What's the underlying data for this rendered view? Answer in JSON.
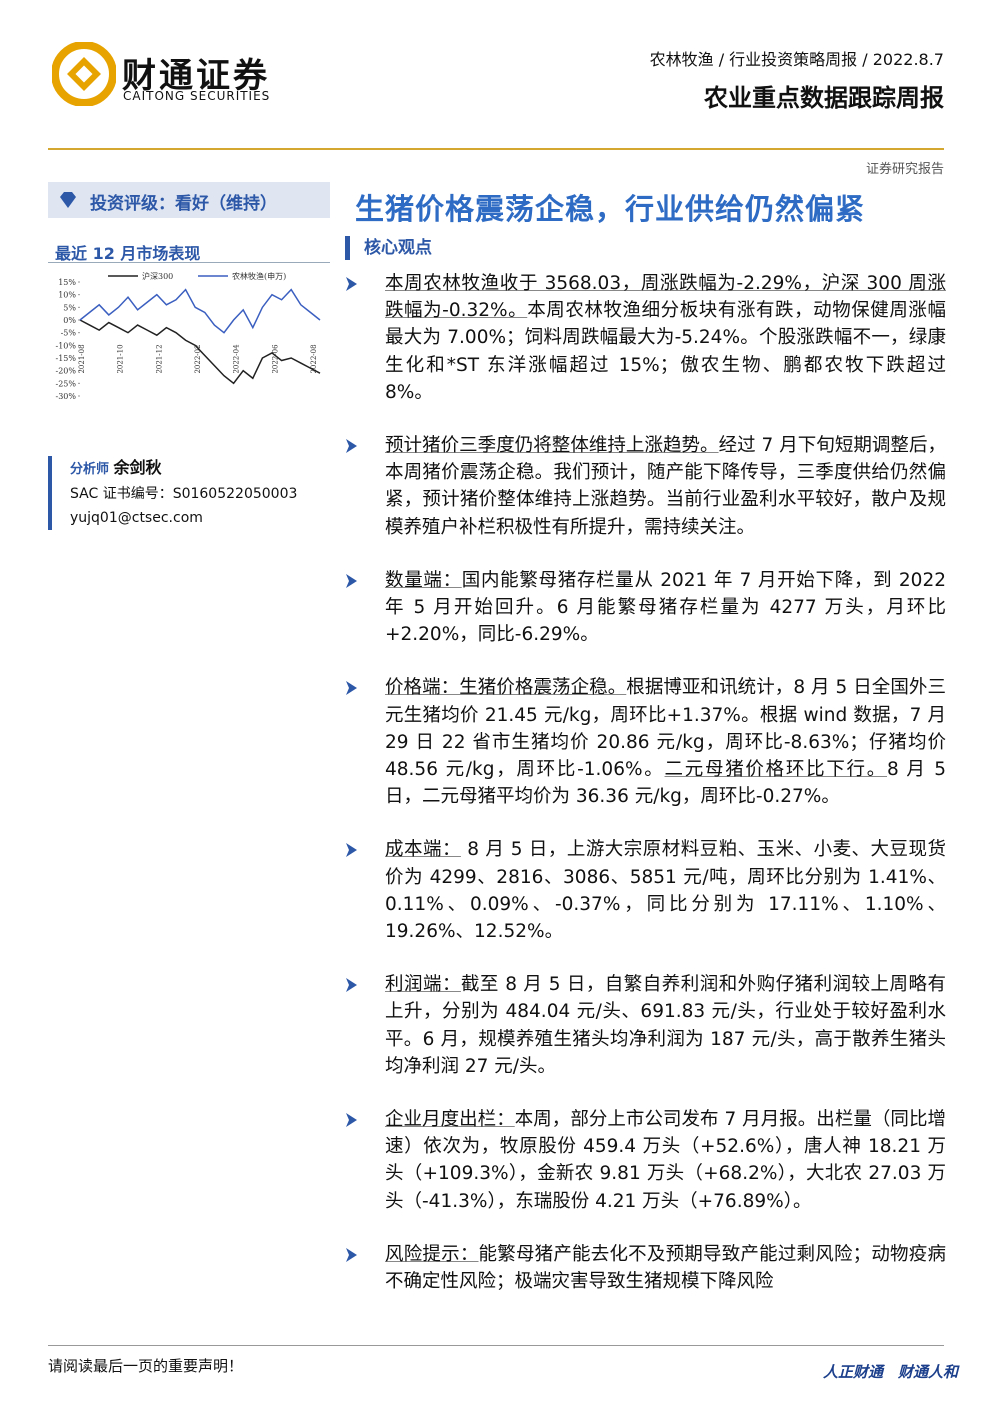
{
  "header": {
    "brand_cn": "财通证券",
    "brand_en": "CAITONG SECURITIES",
    "breadcrumb": "农林牧渔 / 行业投资策略周报 / 2022.8.7",
    "report_name": "农业重点数据跟踪周报",
    "report_type": "证券研究报告"
  },
  "rating": "投资评级：看好（维持）",
  "title": "生猪价格震荡企稳，行业供给仍然偏紧",
  "market_chart": {
    "type": "line",
    "title": "最近 12 月市场表现",
    "series": [
      {
        "name": "沪深300",
        "color": "#222222",
        "values": [
          0,
          -2,
          -4,
          -1,
          -3,
          -5,
          -2,
          -4,
          -6,
          -3,
          -5,
          -8,
          -10,
          -14,
          -18,
          -22,
          -25,
          -20,
          -23,
          -15,
          -13,
          -16,
          -15,
          -17,
          -19,
          -21
        ]
      },
      {
        "name": "农林牧渔(申万)",
        "color": "#3b5fc0",
        "values": [
          0,
          3,
          6,
          2,
          5,
          9,
          4,
          7,
          10,
          6,
          8,
          12,
          5,
          3,
          -2,
          -5,
          0,
          4,
          -3,
          5,
          10,
          8,
          12,
          6,
          3,
          0
        ]
      }
    ],
    "xtick_labels": [
      "2021-08",
      "2021-10",
      "2021-12",
      "2022-02",
      "2022-04",
      "2022-06",
      "2022-08"
    ],
    "ylim": [
      -30,
      15
    ],
    "yticks": [
      {
        "value": 15,
        "label": "15%"
      },
      {
        "value": 10,
        "label": "10%"
      },
      {
        "value": 5,
        "label": "5%"
      },
      {
        "value": 0,
        "label": "0%"
      },
      {
        "value": -5,
        "label": "-5%"
      },
      {
        "value": -10,
        "label": "-10%"
      },
      {
        "value": -15,
        "label": "-15%"
      },
      {
        "value": -20,
        "label": "-20%"
      },
      {
        "value": -25,
        "label": "-25%"
      },
      {
        "value": -30,
        "label": "-30%"
      }
    ]
  },
  "analyst": {
    "label": "分析师",
    "name": "余剑秋",
    "sac": "SAC 证书编号：S0160522050003",
    "email": "yujq01@ctsec.com"
  },
  "core_heading": "核心观点",
  "bullets": [
    {
      "runs": [
        {
          "text": "本周农林牧渔收于 3568.03，周涨跌幅为-2.29%，沪深 300 周涨跌幅为-0.32%。",
          "em": true
        },
        {
          "text": "本周农林牧渔细分板块有涨有跌，动物保健周涨幅最大为 7.00%；饲料周跌幅最大为-5.24%。个股涨跌幅不一，绿康生化和*ST 东洋涨幅超过 15%；傲农生物、鹏都农牧下跌超过 8%。",
          "em": false
        }
      ]
    },
    {
      "runs": [
        {
          "text": "预计猪价三季度仍将整体维持上涨趋势。",
          "em": true
        },
        {
          "text": "经过 7 月下旬短期调整后，本周猪价震荡企稳。我们预计，随产能下降传导，三季度供给仍然偏紧，预计猪价整体维持上涨趋势。当前行业盈利水平较好，散户及规模养殖户补栏积极性有所提升，需持续关注。",
          "em": false
        }
      ]
    },
    {
      "runs": [
        {
          "text": "数量端：",
          "em": true
        },
        {
          "text": "国内能繁母猪存栏量从 2021 年 7 月开始下降，到 2022 年 5 月开始回升。6 月能繁母猪存栏量为 4277 万头，月环比+2.20%，同比-6.29%。",
          "em": false
        }
      ]
    },
    {
      "runs": [
        {
          "text": "价格端：生猪价格震荡企稳。",
          "em": true
        },
        {
          "text": "根据博亚和讯统计，8 月 5 日全国外三元生猪均价 21.45 元/kg，周环比+1.37%。根据 wind 数据，7 月 29 日 22 省市生猪均价 20.86 元/kg，周环比-8.63%；仔猪均价 48.56 元/kg，周环比-1.06%。",
          "em": false
        },
        {
          "text": "二元母猪价格环比下行。",
          "em": true
        },
        {
          "text": "8 月 5 日，二元母猪平均价为 36.36 元/kg，周环比-0.27%。",
          "em": false
        }
      ]
    },
    {
      "runs": [
        {
          "text": "成本端：",
          "em": true
        },
        {
          "text": " 8 月 5 日，上游大宗原材料豆粕、玉米、小麦、大豆现货价为 4299、2816、3086、5851 元/吨，周环比分别为 1.41%、0.11%、0.09%、-0.37%，同比分别为 17.11%、1.10%、19.26%、12.52%。",
          "em": false
        }
      ]
    },
    {
      "runs": [
        {
          "text": "利润端：",
          "em": true
        },
        {
          "text": "截至 8 月 5 日，自繁自养利润和外购仔猪利润较上周略有上升，分别为 484.04 元/头、691.83 元/头，行业处于较好盈利水平。6 月，规模养殖生猪头均净利润为 187 元/头，高于散养生猪头均净利润 27 元/头。",
          "em": false
        }
      ]
    },
    {
      "runs": [
        {
          "text": "企业月度出栏：",
          "em": true
        },
        {
          "text": "本周，部分上市公司发布 7 月月报。出栏量（同比增速）依次为，牧原股份 459.4 万头（+52.6%），唐人神 18.21 万头（+109.3%），金新农 9.81 万头（+68.2%），大北农 27.03 万头（-41.3%），东瑞股份 4.21 万头（+76.89%）。",
          "em": false
        }
      ]
    },
    {
      "runs": [
        {
          "text": "风险提示：",
          "em": true
        },
        {
          "text": "能繁母猪产能去化不及预期导致产能过剩风险；动物疫病不确定性风险；极端灾害导致生猪规模下降风险",
          "em": false
        }
      ]
    }
  ],
  "footer": {
    "notice": "请阅读最后一页的重要声明！",
    "slogan": "人正财通　财通人和"
  }
}
